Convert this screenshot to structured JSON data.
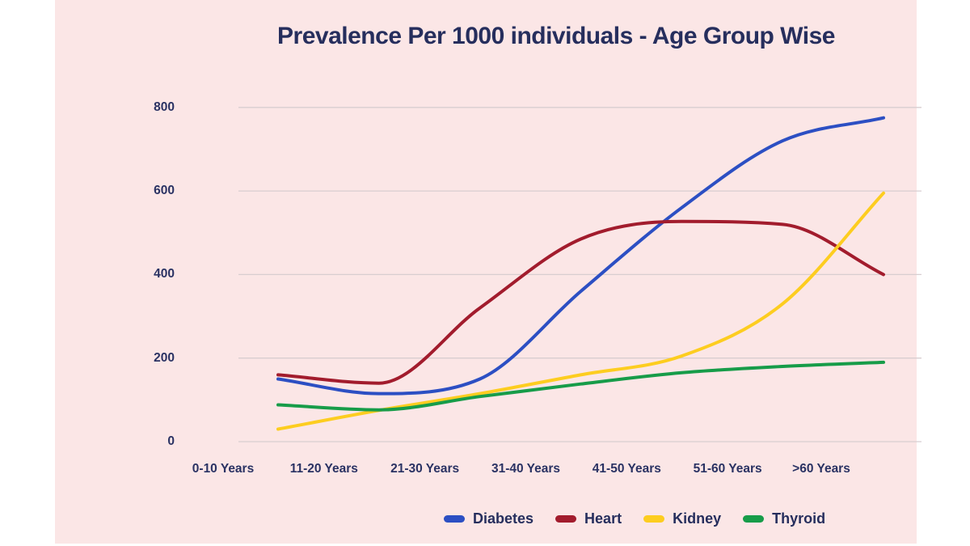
{
  "page": {
    "background": "#ffffff",
    "panel_background": "#fbe6e6",
    "text_color": "#262e5d"
  },
  "chart_data": {
    "type": "line",
    "title": "Prevalence Per 1000 individuals - Age Group Wise",
    "categories": [
      "0-10 Years",
      "11-20 Years",
      "21-30 Years",
      "31-40 Years",
      "41-50 Years",
      "51-60 Years",
      ">60 Years"
    ],
    "series": [
      {
        "name": "Diabetes",
        "color": "#2c4fc3",
        "values": [
          150,
          115,
          150,
          360,
          560,
          720,
          775
        ]
      },
      {
        "name": "Heart",
        "color": "#a21c2d",
        "values": [
          160,
          140,
          320,
          485,
          527,
          520,
          400
        ]
      },
      {
        "name": "Kidney",
        "color": "#fdcd20",
        "values": [
          30,
          75,
          115,
          160,
          205,
          330,
          595
        ]
      },
      {
        "name": "Thyroid",
        "color": "#179c49",
        "values": [
          88,
          76,
          108,
          138,
          165,
          180,
          190
        ]
      }
    ],
    "y_ticks": [
      0,
      200,
      400,
      600,
      800
    ],
    "ylim": [
      0,
      800
    ],
    "xlabel": "",
    "ylabel": "",
    "grid": "horizontal",
    "gridline_color": "#d8ced0",
    "legend_position": "bottom",
    "curve": "smooth-monotone"
  }
}
